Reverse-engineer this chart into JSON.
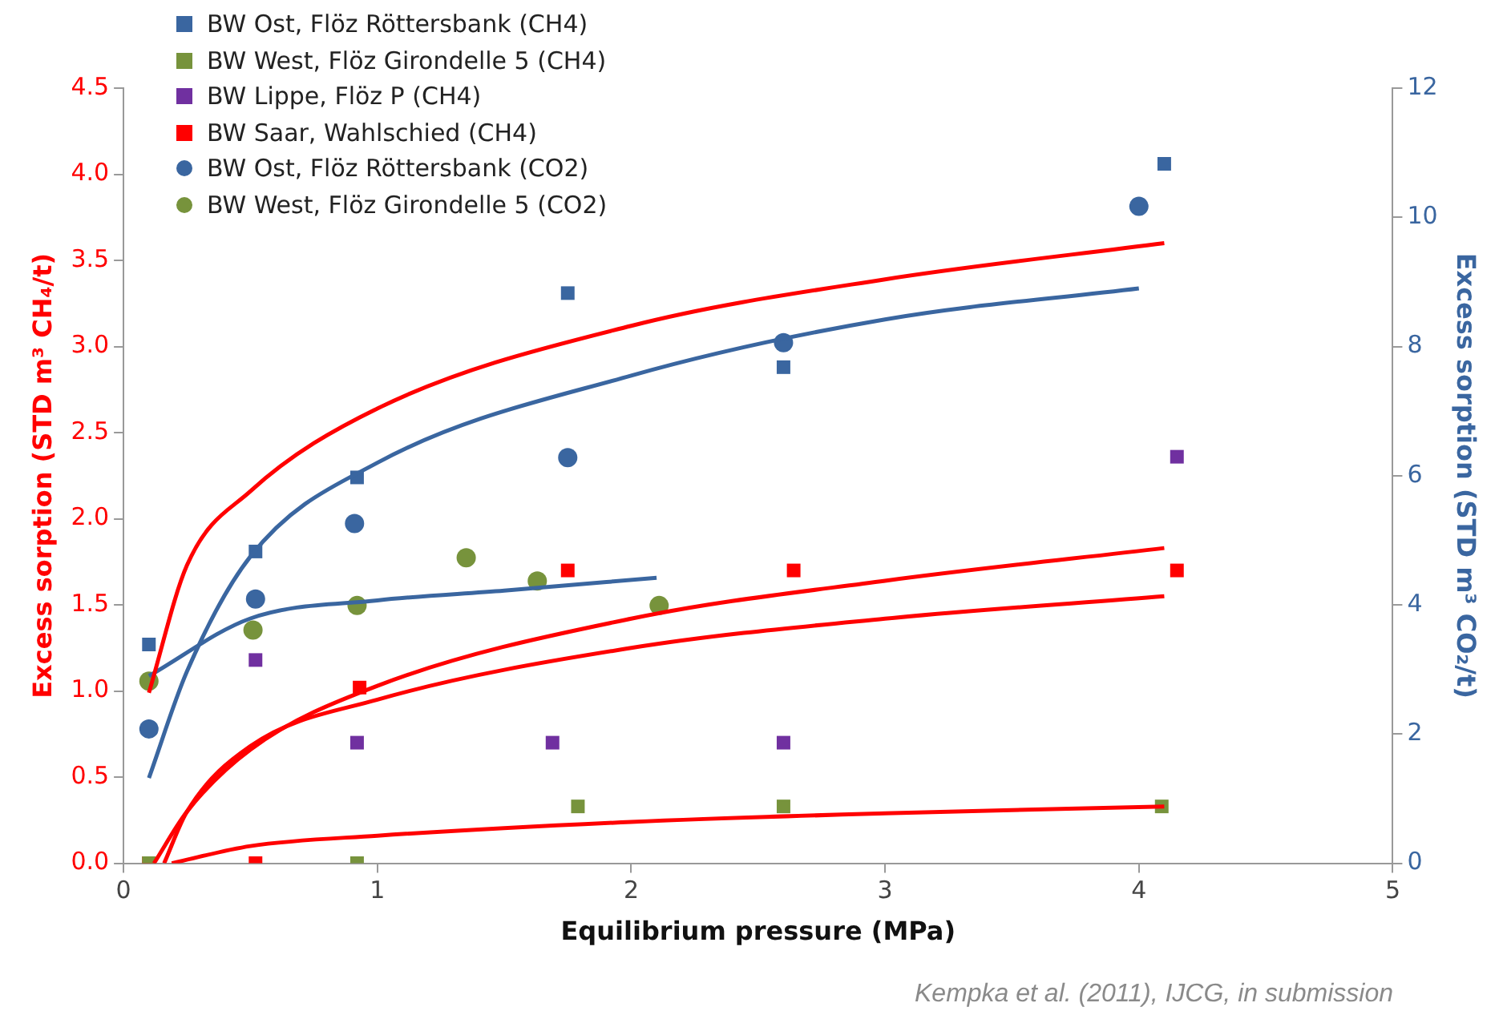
{
  "chart_data": {
    "type": "scatter",
    "xlabel": "Equilibrium pressure (MPa)",
    "ylabel": "Excess sorption (STD m³ CH₄/t)",
    "y2label": "Excess sorption (STD m³ CO₂/t)",
    "xlim": [
      0,
      5
    ],
    "xticks": [
      0,
      1,
      2,
      3,
      4,
      5
    ],
    "ylim": [
      0,
      4.5
    ],
    "yticks": [
      {
        "value": 0,
        "label": "0.0"
      },
      {
        "value": 0.5,
        "label": "0.5"
      },
      {
        "value": 1,
        "label": "1.0"
      },
      {
        "value": 1.5,
        "label": "1.5"
      },
      {
        "value": 2,
        "label": "2.0"
      },
      {
        "value": 2.5,
        "label": "2.5"
      },
      {
        "value": 3,
        "label": "3.0"
      },
      {
        "value": 3.5,
        "label": "3.5"
      },
      {
        "value": 4,
        "label": "4.0"
      },
      {
        "value": 4.5,
        "label": "4.5"
      }
    ],
    "y2lim": [
      0,
      12
    ],
    "y2ticks": [
      0,
      2,
      4,
      6,
      8,
      10,
      12
    ],
    "grid": false,
    "legend": "top left",
    "annotations": [
      "Kempka et al. (2011), IJCG, in submission"
    ],
    "series": [
      {
        "name": "BW Ost, Flöz Röttersbank (CH4)",
        "type": "scatter",
        "marker": "square",
        "color": "#3a66a0",
        "x": [
          0.1,
          0.52,
          0.92,
          1.75,
          2.6,
          4.1
        ],
        "values": [
          1.27,
          1.81,
          2.24,
          3.31,
          2.88,
          4.06
        ]
      },
      {
        "name": "BW West, Flöz Girondelle 5 (CH4)",
        "type": "scatter",
        "marker": "square",
        "color": "#77933c",
        "x": [
          0.1,
          0.92,
          1.79,
          2.6,
          4.09
        ],
        "values": [
          0,
          0,
          0.33,
          0.33,
          0.33
        ]
      },
      {
        "name": "BW Lippe, Flöz P (CH4)",
        "type": "scatter",
        "marker": "square",
        "color": "#7030a0",
        "x": [
          0.52,
          0.92,
          1.69,
          2.6,
          4.15
        ],
        "values": [
          1.18,
          0.7,
          0.7,
          0.7,
          2.36
        ]
      },
      {
        "name": "BW Saar, Wahlschied (CH4)",
        "type": "scatter",
        "marker": "square",
        "color": "#ff0000",
        "x": [
          0.1,
          0.52,
          0.93,
          1.75,
          2.64,
          4.15
        ],
        "values": [
          0,
          0,
          1.02,
          1.7,
          1.7,
          1.7
        ]
      },
      {
        "name": "BW Ost, Flöz Röttersbank (CO2)",
        "type": "scatter",
        "marker": "circle",
        "axis": "y2",
        "color": "#3a66a0",
        "x": [
          0.1,
          0.52,
          0.91,
          1.75,
          2.6,
          4.0
        ],
        "values": [
          2.08,
          4.09,
          5.26,
          6.28,
          8.06,
          10.17
        ]
      },
      {
        "name": "BW West, Flöz Girondelle 5 (CO2)",
        "type": "scatter",
        "marker": "circle",
        "axis": "y2",
        "color": "#77933c",
        "x": [
          0.1,
          0.51,
          0.92,
          1.35,
          1.63,
          2.11
        ],
        "values": [
          2.82,
          3.61,
          3.99,
          4.73,
          4.37,
          3.99
        ]
      },
      {
        "type": "line",
        "marker": "none",
        "color": "#ff0000",
        "x": [
          0.1,
          0.25,
          0.5,
          1,
          2,
          3,
          4.1
        ],
        "values": [
          0.99,
          1.73,
          2.16,
          2.64,
          3.12,
          3.39,
          3.6
        ]
      },
      {
        "type": "line",
        "marker": "none",
        "color": "#ff0000",
        "x": [
          0.12,
          0.25,
          0.5,
          1,
          2,
          3,
          4.1
        ],
        "values": [
          0,
          0.3,
          0.66,
          1.03,
          1.42,
          1.64,
          1.83
        ]
      },
      {
        "type": "line",
        "marker": "none",
        "color": "#ff0000",
        "x": [
          0.16,
          0.25,
          0.5,
          1,
          2,
          3,
          4.1
        ],
        "values": [
          0,
          0.3,
          0.68,
          0.95,
          1.25,
          1.42,
          1.55
        ]
      },
      {
        "type": "line",
        "marker": "none",
        "color": "#ff0000",
        "x": [
          0.19,
          0.5,
          1,
          2,
          3,
          4.1
        ],
        "values": [
          0,
          0.1,
          0.16,
          0.24,
          0.29,
          0.33
        ]
      },
      {
        "type": "line",
        "marker": "none",
        "axis": "y2",
        "color": "#3a66a0",
        "x": [
          0.1,
          0.25,
          0.5,
          1,
          2,
          3,
          4.0
        ],
        "values": [
          1.32,
          2.97,
          4.75,
          6.2,
          7.55,
          8.42,
          8.9
        ]
      },
      {
        "type": "line",
        "marker": "none",
        "axis": "y2",
        "color": "#3a66a0",
        "x": [
          0.1,
          0.5,
          1,
          1.5,
          2.1
        ],
        "values": [
          2.9,
          3.79,
          4.07,
          4.22,
          4.42
        ]
      }
    ]
  }
}
